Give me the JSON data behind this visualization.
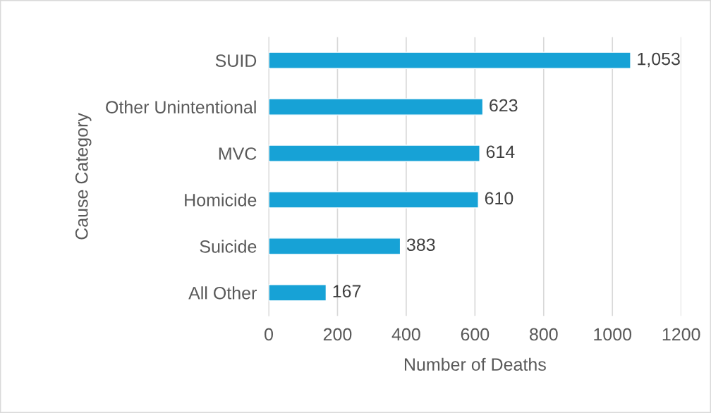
{
  "chart_data": {
    "type": "bar",
    "orientation": "horizontal",
    "xlabel": "Number of Deaths",
    "ylabel": "Cause Category",
    "categories": [
      "SUID",
      "Other Unintentional",
      "MVC",
      "Homicide",
      "Suicide",
      "All Other"
    ],
    "values": [
      1053,
      623,
      614,
      610,
      383,
      167
    ],
    "value_labels": [
      "1,053",
      "623",
      "614",
      "610",
      "383",
      "167"
    ],
    "color": "#17a2d6",
    "xlim": [
      0,
      1200
    ],
    "xticks": [
      0,
      200,
      400,
      600,
      800,
      1000,
      1200
    ],
    "grid": "x"
  }
}
